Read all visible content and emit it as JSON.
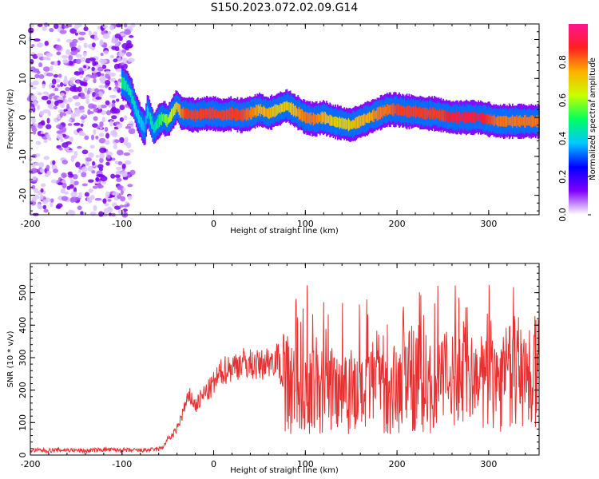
{
  "title": "S150.2023.072.02.09.G14",
  "chart_data": [
    {
      "type": "heatmap",
      "xlabel": "Height of straight line (km)",
      "ylabel": "Frequency (Hz)",
      "xlim": [
        -200,
        355
      ],
      "ylim": [
        -25,
        24
      ],
      "xticks": [
        "-200",
        "-100",
        "0",
        "100",
        "200",
        "300"
      ],
      "xtick_values": [
        -200,
        -100,
        0,
        100,
        200,
        300
      ],
      "yticks": [
        "-20",
        "-10",
        "0",
        "10",
        "20"
      ],
      "ytick_values": [
        -20,
        -10,
        0,
        10,
        20
      ],
      "colorbar": {
        "label": "Normalized spectral amplitude",
        "range": [
          0,
          1
        ],
        "ticks": [
          "0.0",
          "0.2",
          "0.4",
          "0.6",
          "0.8"
        ],
        "tick_values": [
          0.0,
          0.2,
          0.4,
          0.6,
          0.8
        ],
        "colors": [
          "#ffffff",
          "#8000ff",
          "#0000ff",
          "#00c8ff",
          "#00ff60",
          "#c8ff00",
          "#ffb000",
          "#ff2020",
          "#ff1493"
        ]
      },
      "noise_region": {
        "x_from": -200,
        "x_to": -88,
        "y_from": -25,
        "y_to": 24
      },
      "ridge": {
        "x": [
          -100,
          -95,
          -90,
          -85,
          -80,
          -75,
          -72,
          -68,
          -65,
          -60,
          -55,
          -50,
          -45,
          -40,
          -35,
          -30,
          -20,
          -10,
          0,
          10,
          20,
          30,
          40,
          50,
          60,
          70,
          80,
          90,
          100,
          110,
          120,
          130,
          140,
          150,
          160,
          170,
          180,
          190,
          200,
          210,
          220,
          230,
          240,
          250,
          260,
          270,
          280,
          290,
          300,
          310,
          320,
          330,
          340,
          355
        ],
        "y": [
          9,
          8,
          6,
          2,
          -1,
          -3,
          2,
          -1,
          -3,
          -1,
          0,
          -1,
          1,
          3,
          1,
          1,
          0.5,
          1,
          1,
          0.5,
          1,
          0.5,
          1,
          2,
          1,
          2,
          3,
          1.5,
          0,
          -0.5,
          0,
          -1,
          -1.5,
          -2,
          -1,
          0,
          1,
          2,
          2,
          1.5,
          1.5,
          1,
          1,
          0.5,
          0,
          0,
          0,
          0,
          -0.5,
          -1,
          -1,
          -1,
          -1,
          -1
        ],
        "amp": [
          0.5,
          0.45,
          0.45,
          0.4,
          0.4,
          0.35,
          0.4,
          0.45,
          0.4,
          0.5,
          0.55,
          0.6,
          0.65,
          0.7,
          0.8,
          0.85,
          0.85,
          0.85,
          0.85,
          0.85,
          0.85,
          0.85,
          0.8,
          0.75,
          0.75,
          0.7,
          0.7,
          0.75,
          0.8,
          0.8,
          0.75,
          0.7,
          0.7,
          0.7,
          0.75,
          0.75,
          0.8,
          0.8,
          0.85,
          0.85,
          0.85,
          0.85,
          0.85,
          0.85,
          0.9,
          0.9,
          0.9,
          0.9,
          0.85,
          0.8,
          0.8,
          0.8,
          0.8,
          0.8
        ]
      }
    },
    {
      "type": "line",
      "xlabel": "Height of straight line (km)",
      "ylabel": "SNR (10 * v/v)",
      "xlim": [
        -200,
        355
      ],
      "ylim": [
        0,
        590
      ],
      "xticks": [
        "-200",
        "-100",
        "0",
        "100",
        "200",
        "300"
      ],
      "xtick_values": [
        -200,
        -100,
        0,
        100,
        200,
        300
      ],
      "yticks": [
        "0",
        "100",
        "200",
        "300",
        "400",
        "500"
      ],
      "ytick_values": [
        0,
        100,
        200,
        300,
        400,
        500
      ],
      "color": "#e83030",
      "series": [
        {
          "x": [
            -200,
            -180,
            -160,
            -140,
            -120,
            -100,
            -80,
            -60,
            -55,
            -50,
            -45,
            -40,
            -35,
            -30,
            -25,
            -20,
            -15,
            -10,
            -5,
            0,
            10,
            20,
            30,
            40,
            50,
            60,
            70,
            75,
            80,
            85,
            90,
            95,
            100,
            110,
            120,
            130,
            140,
            150,
            160,
            170,
            180,
            190,
            200,
            210,
            220,
            230,
            240,
            250,
            260,
            270,
            280,
            290,
            300,
            310,
            320,
            330,
            340,
            355
          ],
          "y": [
            15,
            14,
            16,
            13,
            17,
            15,
            14,
            18,
            25,
            50,
            60,
            80,
            120,
            160,
            180,
            150,
            170,
            190,
            200,
            220,
            260,
            270,
            285,
            280,
            275,
            290,
            300,
            240,
            250,
            200,
            220,
            180,
            230,
            200,
            210,
            220,
            240,
            220,
            180,
            200,
            260,
            220,
            210,
            260,
            240,
            230,
            210,
            250,
            230,
            280,
            240,
            220,
            250,
            250,
            260,
            280,
            250,
            280
          ]
        }
      ]
    }
  ]
}
